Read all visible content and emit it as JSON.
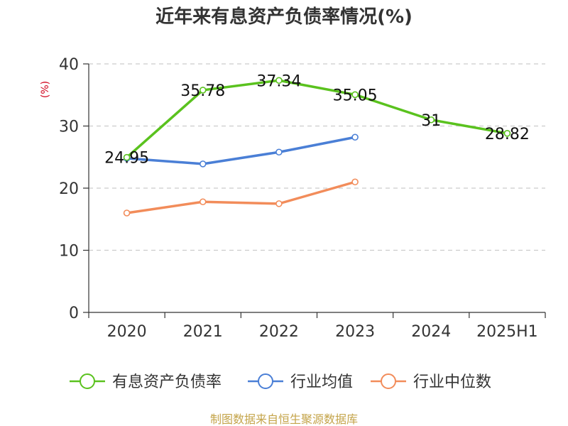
{
  "chart_data": {
    "type": "line",
    "title": "近年来有息资产负债率情况(%)",
    "ylabel": "(%)",
    "categories": [
      "2020",
      "2021",
      "2022",
      "2023",
      "2024",
      "2025H1"
    ],
    "ylim": [
      0,
      40
    ],
    "yticks": [
      0,
      10,
      20,
      30,
      40
    ],
    "grid": true,
    "legend_position": "bottom",
    "series": [
      {
        "name": "有息资产负债率",
        "values": [
          24.95,
          35.78,
          37.34,
          35.05,
          31,
          28.82
        ],
        "color": "#5ac21e",
        "data_labels": [
          "24.95",
          "35.78",
          "37.34",
          "35.05",
          "31",
          "28.82"
        ]
      },
      {
        "name": "行业均值",
        "values": [
          24.8,
          23.9,
          25.8,
          28.2,
          null,
          null
        ],
        "color": "#4a7fd6"
      },
      {
        "name": "行业中位数",
        "values": [
          16.0,
          17.8,
          17.5,
          21.0,
          null,
          null
        ],
        "color": "#f28c5a"
      }
    ],
    "ylabel_color": "#d0021b"
  },
  "source": {
    "text": "制图数据来自恒生聚源数据库",
    "color": "#c4a44a"
  }
}
